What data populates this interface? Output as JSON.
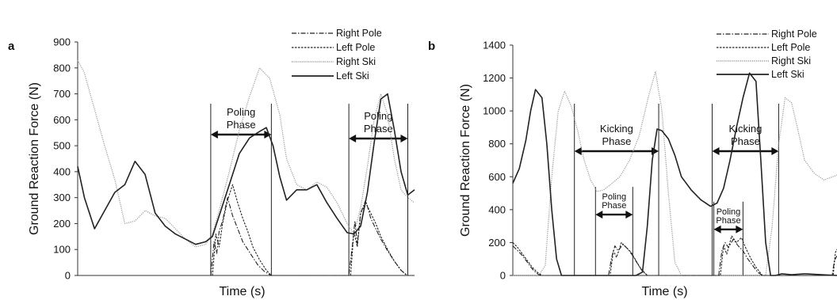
{
  "chart_data": [
    {
      "panel": "a",
      "type": "line",
      "xlabel": "Time (s)",
      "ylabel": "Ground Reaction Force (N)",
      "ylim": [
        0,
        900
      ],
      "yticks": [
        0,
        100,
        200,
        300,
        400,
        500,
        600,
        700,
        800,
        900
      ],
      "xlim": [
        0,
        100
      ],
      "legend_position": "top-right",
      "series": [
        {
          "name": "Right Pole",
          "style": "dash-dot",
          "x": [
            39.5,
            40.5,
            41.3,
            42,
            43,
            44.5,
            46,
            47.5,
            49,
            50.5,
            52,
            53.5,
            55.5,
            56.8,
            57.5,
            80.5,
            81.5,
            82.3,
            83,
            84,
            85.5,
            87,
            88.5,
            90,
            92,
            94,
            96,
            97.8
          ],
          "y": [
            0,
            130,
            85,
            170,
            210,
            300,
            230,
            180,
            130,
            100,
            70,
            40,
            15,
            5,
            0,
            0,
            110,
            210,
            120,
            240,
            290,
            220,
            180,
            140,
            95,
            55,
            20,
            0
          ]
        },
        {
          "name": "Left Pole",
          "style": "dashed",
          "x": [
            40,
            41,
            42,
            43,
            44.5,
            46,
            47.5,
            49,
            50.5,
            52,
            54,
            56,
            57.5,
            81,
            82,
            83,
            84,
            85.5,
            87,
            88.5,
            90,
            92,
            94,
            96,
            97.8
          ],
          "y": [
            0,
            160,
            110,
            200,
            290,
            350,
            280,
            220,
            170,
            110,
            60,
            20,
            0,
            0,
            170,
            110,
            240,
            280,
            240,
            200,
            150,
            100,
            55,
            20,
            0
          ]
        },
        {
          "name": "Right Ski",
          "style": "dotted",
          "x": [
            0,
            2,
            5,
            8,
            11,
            14,
            17,
            20,
            23,
            26,
            29,
            32,
            35,
            38,
            40,
            42,
            45,
            48,
            51,
            54,
            57,
            60,
            62,
            65,
            68,
            71,
            74,
            77,
            80,
            82,
            84,
            86,
            88,
            90,
            92,
            94,
            96,
            98,
            100
          ],
          "y": [
            830,
            780,
            640,
            500,
            370,
            200,
            210,
            250,
            230,
            220,
            180,
            140,
            110,
            120,
            160,
            250,
            400,
            560,
            690,
            800,
            760,
            620,
            450,
            350,
            330,
            360,
            340,
            280,
            200,
            160,
            260,
            420,
            600,
            700,
            620,
            450,
            330,
            300,
            280
          ]
        },
        {
          "name": "Left Ski",
          "style": "solid",
          "x": [
            0,
            2,
            5,
            8,
            11,
            14,
            17,
            20,
            23,
            26,
            29,
            32,
            35,
            38,
            40,
            42,
            45,
            48,
            51,
            54,
            56,
            58,
            60,
            62,
            65,
            68,
            71,
            74,
            77,
            80,
            82,
            84,
            86,
            88,
            90,
            92,
            94,
            96,
            98,
            100
          ],
          "y": [
            420,
            300,
            180,
            250,
            320,
            350,
            440,
            390,
            240,
            190,
            160,
            140,
            120,
            130,
            150,
            230,
            350,
            470,
            530,
            555,
            570,
            500,
            380,
            290,
            330,
            330,
            350,
            280,
            220,
            165,
            160,
            190,
            320,
            510,
            680,
            700,
            560,
            400,
            310,
            330
          ]
        }
      ],
      "annotations": [
        {
          "text": "Poling Phase",
          "x0": 39.5,
          "x1": 57.5
        },
        {
          "text": "Poling Phase",
          "x0": 80.5,
          "x1": 98
        }
      ]
    },
    {
      "panel": "b",
      "type": "line",
      "xlabel": "Time (s)",
      "ylabel": "Ground Reaction Force (N)",
      "ylim": [
        0,
        1400
      ],
      "yticks": [
        0,
        200,
        400,
        600,
        800,
        1000,
        1200,
        1400
      ],
      "xlim": [
        0,
        100
      ],
      "legend_position": "top-right",
      "series": [
        {
          "name": "Right Pole",
          "style": "dash-dot",
          "x": [
            0,
            1.5,
            3,
            4.5,
            6,
            7,
            8,
            9,
            29.5,
            30.5,
            31.5,
            32.5,
            34,
            35.5,
            37,
            38.5,
            40,
            41.5,
            63.5,
            64.5,
            65.5,
            66.5,
            68,
            69.5,
            71,
            72.5,
            74,
            75.5,
            77,
            98.5,
            99.2,
            100
          ],
          "y": [
            180,
            150,
            120,
            80,
            40,
            20,
            5,
            0,
            0,
            110,
            180,
            150,
            190,
            160,
            120,
            70,
            25,
            0,
            0,
            150,
            200,
            170,
            220,
            180,
            150,
            100,
            60,
            20,
            0,
            0,
            90,
            120
          ]
        },
        {
          "name": "Left Pole",
          "style": "dashed",
          "x": [
            0,
            1.5,
            3,
            4.5,
            6,
            7.5,
            9,
            30,
            31,
            32,
            33.5,
            35,
            36.5,
            38,
            39.5,
            41.5,
            64,
            65,
            66,
            67.5,
            69,
            70.5,
            72,
            73.5,
            75,
            77,
            98.8,
            99.5,
            100
          ],
          "y": [
            200,
            170,
            130,
            90,
            50,
            20,
            0,
            0,
            150,
            110,
            200,
            170,
            140,
            90,
            40,
            0,
            0,
            180,
            130,
            240,
            200,
            230,
            160,
            100,
            50,
            0,
            0,
            140,
            160
          ]
        },
        {
          "name": "Right Ski",
          "style": "dotted",
          "x": [
            0,
            2,
            4,
            6,
            8,
            10,
            12,
            14,
            16,
            18,
            20,
            22,
            24,
            26,
            28,
            30,
            33,
            36,
            39,
            42,
            44,
            46,
            48,
            50,
            52,
            54,
            56,
            58,
            60,
            62,
            64,
            66,
            68,
            70,
            72,
            74,
            76,
            78,
            80,
            82,
            84,
            86,
            88,
            90,
            93,
            96,
            100
          ],
          "y": [
            0,
            0,
            0,
            0,
            0,
            60,
            600,
            1000,
            1120,
            1030,
            880,
            700,
            580,
            510,
            520,
            550,
            600,
            700,
            850,
            1100,
            1240,
            1000,
            500,
            80,
            0,
            0,
            0,
            0,
            0,
            0,
            0,
            0,
            0,
            0,
            0,
            0,
            0,
            0,
            300,
            800,
            1080,
            1050,
            880,
            700,
            620,
            580,
            610
          ]
        },
        {
          "name": "Left Ski",
          "style": "solid",
          "x": [
            0,
            2,
            4,
            5.5,
            7,
            9,
            10.5,
            12,
            13.5,
            15,
            17,
            20,
            25,
            30,
            35,
            38,
            40,
            41.5,
            43,
            44.5,
            46,
            48,
            50,
            52,
            55,
            58,
            61,
            63,
            65,
            67,
            69,
            71,
            73,
            75,
            76.5,
            78,
            79.5,
            81,
            83,
            86,
            90,
            100
          ],
          "y": [
            560,
            650,
            820,
            1000,
            1130,
            1080,
            800,
            400,
            100,
            0,
            0,
            0,
            0,
            0,
            0,
            0,
            20,
            300,
            700,
            890,
            880,
            830,
            730,
            600,
            520,
            460,
            420,
            440,
            530,
            700,
            900,
            1080,
            1230,
            1180,
            700,
            200,
            0,
            0,
            10,
            5,
            10,
            0
          ]
        }
      ],
      "annotations": [
        {
          "text": "Kicking Phase",
          "x0": 19,
          "x1": 45
        },
        {
          "text": "Kicking Phase",
          "x0": 61.5,
          "x1": 82
        },
        {
          "text": "Poling Phase",
          "x0": 25.5,
          "x1": 37,
          "y_level": 370
        },
        {
          "text": "Poling Phase",
          "x0": 62,
          "x1": 71,
          "y_level": 280
        }
      ]
    }
  ]
}
